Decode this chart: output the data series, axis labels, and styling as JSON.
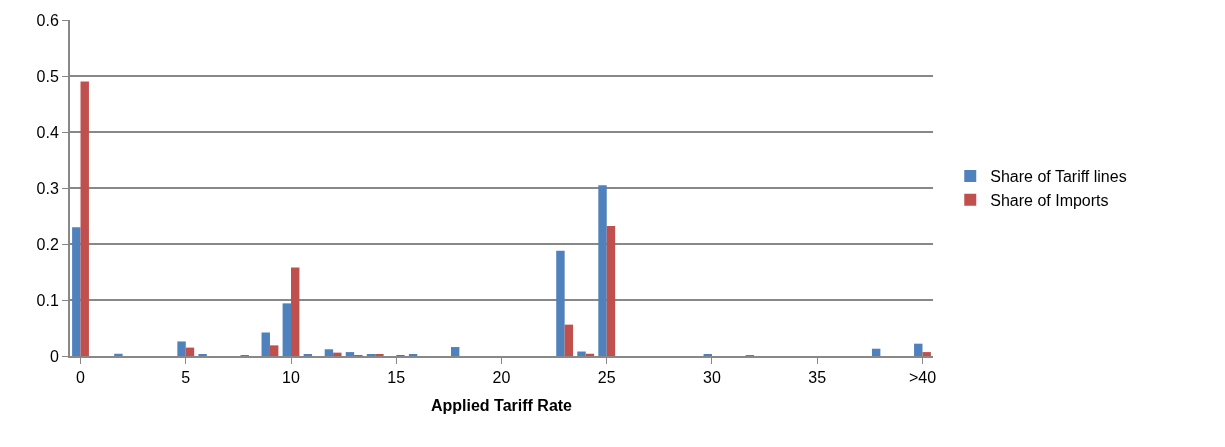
{
  "chart_data": {
    "type": "bar",
    "xlabel": "Applied Tariff Rate",
    "categories": [
      "0",
      null,
      null,
      null,
      null,
      "5",
      null,
      null,
      null,
      null,
      "10",
      null,
      null,
      null,
      null,
      "15",
      null,
      null,
      null,
      null,
      "20",
      null,
      null,
      null,
      null,
      "25",
      null,
      null,
      null,
      null,
      "30",
      null,
      null,
      null,
      null,
      "35",
      null,
      null,
      null,
      null,
      ">40"
    ],
    "series": [
      {
        "name": "Share of Tariff lines",
        "color": "#4f81bd",
        "values": [
          0.23,
          0,
          0.004,
          0,
          0,
          0.026,
          0.002,
          0,
          0.001,
          0.042,
          0.094,
          0.003,
          0.012,
          0.007,
          0.002,
          0,
          0.002,
          0,
          0.016,
          0,
          0,
          0,
          0,
          0.188,
          0.008,
          0.305,
          0,
          0,
          0,
          0,
          0.002,
          0,
          0.001,
          0,
          0,
          0,
          0,
          0,
          0.013,
          0,
          0.022
        ]
      },
      {
        "name": "Share of Imports",
        "color": "#c0504d",
        "values": [
          0.49,
          0,
          0,
          0,
          0,
          0.015,
          0,
          0,
          0,
          0.019,
          0.158,
          0,
          0.006,
          0.001,
          0.002,
          0.001,
          0,
          0,
          0,
          0,
          0,
          0,
          0,
          0.056,
          0.004,
          0.232,
          0,
          0,
          0,
          0,
          0,
          0,
          0,
          0,
          0,
          0,
          0,
          0,
          0,
          0,
          0.007
        ]
      }
    ],
    "ylim": [
      0,
      0.6
    ],
    "yticks": [
      0,
      0.1,
      0.2,
      0.3,
      0.4,
      0.5,
      0.6
    ],
    "grid": "y",
    "legend": "right"
  }
}
